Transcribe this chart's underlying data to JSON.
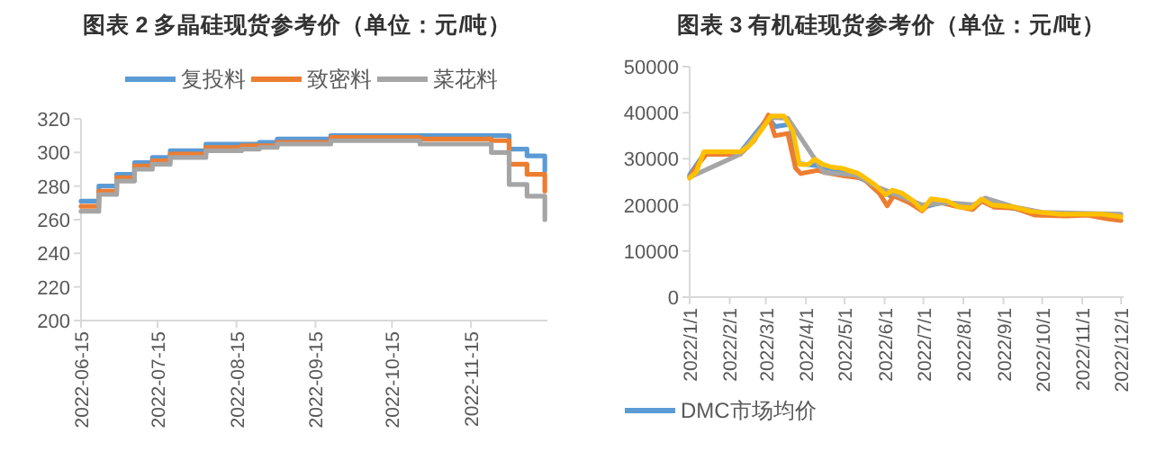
{
  "chart_data": [
    {
      "type": "step",
      "title": "图表 2   多晶硅现货参考价（单位：元/吨）",
      "legend": "top",
      "x": [
        "2022-06-15",
        "2022-06-22",
        "2022-06-29",
        "2022-07-06",
        "2022-07-13",
        "2022-07-20",
        "2022-07-27",
        "2022-08-03",
        "2022-08-10",
        "2022-08-17",
        "2022-08-24",
        "2022-08-31",
        "2022-09-07",
        "2022-09-14",
        "2022-09-21",
        "2022-09-28",
        "2022-10-05",
        "2022-10-12",
        "2022-10-19",
        "2022-10-26",
        "2022-11-02",
        "2022-11-09",
        "2022-11-16",
        "2022-11-23",
        "2022-11-30",
        "2022-12-07",
        "2022-12-14"
      ],
      "series": [
        {
          "name": "复投料",
          "color": "#5b9bd5",
          "values": [
            271,
            280,
            287,
            294,
            297,
            301,
            301,
            305,
            305,
            305,
            306,
            308,
            308,
            308,
            310,
            310,
            310,
            310,
            310,
            310,
            310,
            310,
            310,
            310,
            302,
            298,
            289
          ]
        },
        {
          "name": "致密料",
          "color": "#ed7d31",
          "values": [
            268,
            277,
            285,
            292,
            295,
            299,
            299,
            303,
            303,
            304,
            304,
            306,
            306,
            306,
            309,
            309,
            309,
            309,
            309,
            308,
            308,
            308,
            308,
            307,
            293,
            287,
            277
          ]
        },
        {
          "name": "菜花料",
          "color": "#a5a5a5",
          "values": [
            265,
            275,
            283,
            290,
            293,
            297,
            297,
            301,
            301,
            302,
            303,
            305,
            305,
            305,
            307,
            307,
            307,
            307,
            307,
            305,
            305,
            305,
            305,
            300,
            281,
            274,
            260
          ]
        }
      ],
      "xlim": [
        "2022-06-15",
        "2022-12-15"
      ],
      "xticks": [
        "2022-06-15",
        "2022-07-15",
        "2022-08-15",
        "2022-09-15",
        "2022-10-15",
        "2022-11-15"
      ],
      "ylim": [
        200,
        320
      ],
      "yticks": [
        200,
        220,
        240,
        260,
        280,
        300,
        320
      ]
    },
    {
      "type": "line",
      "title": "图表 3   有机硅现货参考价（单位：元/吨）",
      "legend": "bottom",
      "series": [
        {
          "name": "DMC市场均价",
          "color": "#5b9bd5",
          "x": [
            "2022-01-01",
            "2022-01-12",
            "2022-02-09",
            "2022-03-03",
            "2022-03-08",
            "2022-03-20",
            "2022-03-26",
            "2022-04-10",
            "2022-05-01",
            "2022-05-20",
            "2022-06-05",
            "2022-06-20",
            "2022-07-01",
            "2022-07-15",
            "2022-08-05",
            "2022-08-16",
            "2022-09-05",
            "2022-09-25"
          ],
          "values": [
            26500,
            31000,
            31300,
            39000,
            37000,
            37500,
            29000,
            28500,
            27200,
            25000,
            22000,
            21200,
            19500,
            20500,
            19500,
            21000,
            19500,
            18300
          ]
        },
        {
          "color": "#ed7d31",
          "x": [
            "2022-01-01",
            "2022-01-08",
            "2022-01-14",
            "2022-02-09",
            "2022-02-20",
            "2022-03-03",
            "2022-03-08",
            "2022-03-18",
            "2022-03-24",
            "2022-03-28",
            "2022-04-10",
            "2022-04-20",
            "2022-05-01",
            "2022-05-15",
            "2022-05-28",
            "2022-06-03",
            "2022-06-08",
            "2022-06-20",
            "2022-06-30",
            "2022-07-08",
            "2022-07-25",
            "2022-08-08",
            "2022-08-15",
            "2022-08-25",
            "2022-09-10",
            "2022-09-25",
            "2022-10-20",
            "2022-11-05",
            "2022-11-20",
            "2022-12-01"
          ],
          "values": [
            26000,
            29000,
            31000,
            31000,
            34000,
            39500,
            35000,
            35500,
            28000,
            26800,
            27500,
            26800,
            26300,
            25800,
            22500,
            19800,
            22000,
            20500,
            18700,
            21000,
            19800,
            19000,
            20800,
            19500,
            19300,
            17800,
            17600,
            17800,
            17000,
            16600
          ]
        },
        {
          "color": "#a5a5a5",
          "x": [
            "2022-01-01",
            "2022-02-09",
            "2022-03-05",
            "2022-03-18",
            "2022-04-15",
            "2022-05-10",
            "2022-05-25",
            "2022-06-08",
            "2022-06-30",
            "2022-07-20",
            "2022-08-10",
            "2022-08-18",
            "2022-09-10",
            "2022-10-01",
            "2022-11-01",
            "2022-12-01"
          ],
          "values": [
            26000,
            31000,
            39000,
            38800,
            27000,
            26500,
            24000,
            22500,
            20000,
            20500,
            20000,
            21500,
            19500,
            18400,
            18200,
            18000
          ]
        },
        {
          "color": "#ffc000",
          "x": [
            "2022-01-01",
            "2022-01-06",
            "2022-01-12",
            "2022-02-09",
            "2022-02-16",
            "2022-02-25",
            "2022-03-05",
            "2022-03-15",
            "2022-03-22",
            "2022-03-27",
            "2022-04-03",
            "2022-04-08",
            "2022-04-14",
            "2022-04-21",
            "2022-04-30",
            "2022-05-12",
            "2022-05-24",
            "2022-06-02",
            "2022-06-07",
            "2022-06-14",
            "2022-06-23",
            "2022-06-30",
            "2022-07-07",
            "2022-07-19",
            "2022-07-28",
            "2022-08-07",
            "2022-08-15",
            "2022-08-23",
            "2022-09-08",
            "2022-09-22",
            "2022-10-15",
            "2022-11-17",
            "2022-12-01"
          ],
          "values": [
            25800,
            27100,
            31500,
            31500,
            32800,
            36000,
            39300,
            39300,
            36000,
            28800,
            28800,
            29900,
            28800,
            28200,
            27900,
            26800,
            24500,
            22200,
            23200,
            22600,
            20900,
            18900,
            21300,
            20900,
            19600,
            19300,
            21300,
            20000,
            19600,
            18600,
            18000,
            18000,
            17400
          ]
        }
      ],
      "xlim": [
        "2022-01-01",
        "2022-12-03"
      ],
      "xticks": [
        {
          "value": "2022-01-01",
          "label": "2022/1/1"
        },
        {
          "value": "2022-02-01",
          "label": "2022/2/1"
        },
        {
          "value": "2022-03-01",
          "label": "2022/3/1"
        },
        {
          "value": "2022-04-01",
          "label": "2022/4/1"
        },
        {
          "value": "2022-05-01",
          "label": "2022/5/1"
        },
        {
          "value": "2022-06-01",
          "label": "2022/6/1"
        },
        {
          "value": "2022-07-01",
          "label": "2022/7/1"
        },
        {
          "value": "2022-08-01",
          "label": "2022/8/1"
        },
        {
          "value": "2022-09-01",
          "label": "2022/9/1"
        },
        {
          "value": "2022-10-01",
          "label": "2022/10/1"
        },
        {
          "value": "2022-11-01",
          "label": "2022/11/1"
        },
        {
          "value": "2022-12-01",
          "label": "2022/12/1"
        }
      ],
      "ylim": [
        0,
        50000
      ],
      "yticks": [
        0,
        10000,
        20000,
        30000,
        40000,
        50000
      ]
    }
  ]
}
